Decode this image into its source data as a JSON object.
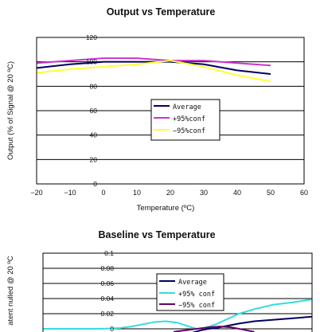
{
  "chart_data": [
    {
      "type": "line",
      "title": "Output vs Temperature",
      "xlabel": "Temperature (ºC)",
      "ylabel": "Output (% of Signal @ 20 ºC)",
      "xlim": [
        -20,
        60
      ],
      "ylim": [
        0,
        120
      ],
      "xticks": [
        "−20",
        "−10",
        "0",
        "10",
        "20",
        "30",
        "40",
        "50",
        "60"
      ],
      "yticks": [
        "0",
        "20",
        "40",
        "60",
        "80",
        "100",
        "120"
      ],
      "grid": "horizontal",
      "legend_position": "center-right",
      "series": [
        {
          "name": "Average",
          "color": "#000060",
          "x": [
            -20,
            -10,
            0,
            10,
            20,
            30,
            40,
            50
          ],
          "y": [
            95,
            98,
            100,
            100,
            100,
            98,
            93,
            90
          ]
        },
        {
          "name": "+95%conf",
          "color": "#cc33cc",
          "x": [
            -20,
            -10,
            0,
            10,
            20,
            30,
            40,
            50
          ],
          "y": [
            99,
            101,
            103,
            103,
            101,
            101,
            99,
            97
          ]
        },
        {
          "name": "−95%conf",
          "color": "#ffff33",
          "x": [
            -20,
            -10,
            0,
            10,
            20,
            30,
            40,
            50
          ],
          "y": [
            91,
            94,
            96,
            98,
            101,
            96,
            89,
            84
          ]
        }
      ]
    },
    {
      "type": "line",
      "title": "Baseline vs Temperature",
      "ylabel": "atent nulled @ 20 ºC",
      "ylim": [
        0,
        0.1
      ],
      "yticks": [
        "0",
        "0.02",
        "0.04",
        "0.06",
        "0.08",
        "0.1"
      ],
      "grid": "horizontal",
      "legend_position": "center-right",
      "series": [
        {
          "name": "Average",
          "color": "#000060",
          "x": [
            19,
            21,
            23,
            25,
            27,
            29,
            31,
            35,
            40,
            45,
            50
          ],
          "y": [
            -0.005,
            -0.002,
            0,
            0.001,
            0.003,
            0.005,
            0.007,
            0.01,
            0.012,
            0.014,
            0.016
          ]
        },
        {
          "name": "+95% conf",
          "color": "#33dddd",
          "x": [
            -20,
            -10,
            -5,
            0,
            3,
            6,
            9,
            12,
            15,
            18,
            20,
            22,
            25,
            28,
            31,
            35,
            40,
            45,
            50
          ],
          "y": [
            0,
            0,
            0,
            0.001,
            0.003,
            0.006,
            0.009,
            0.01,
            0.008,
            0.003,
            0,
            0.001,
            0.006,
            0.013,
            0.02,
            0.026,
            0.032,
            0.035,
            0.039
          ]
        },
        {
          "name": "−95% conf",
          "color": "#660066",
          "x": [
            14,
            17,
            20,
            23,
            26,
            29,
            32,
            35
          ],
          "y": [
            -0.004,
            -0.002,
            0,
            0.002,
            0.003,
            0.002,
            -0.001,
            -0.004
          ]
        }
      ]
    }
  ]
}
